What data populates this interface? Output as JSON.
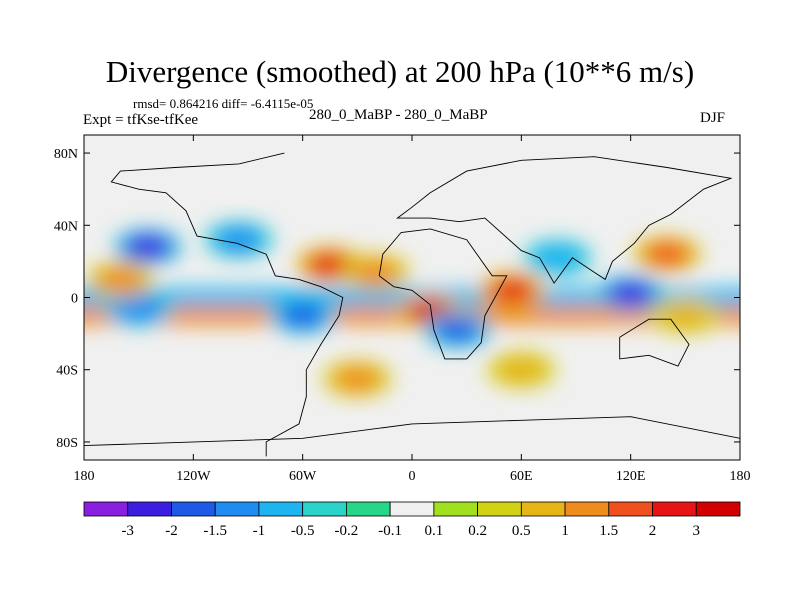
{
  "header": {
    "title": "Divergence (smoothed) at 200 hPa (10**6 m/s)",
    "stats": "rmsd= 0.864216 diff= -6.4115e-05",
    "expt": "Expt = tfKse-tfKee",
    "case": "280_0_MaBP - 280_0_MaBP",
    "season": "DJF"
  },
  "chart_data": {
    "type": "heatmap",
    "title": "Divergence (smoothed) at 200 hPa (10**6 m/s)",
    "xlabel": "",
    "ylabel": "",
    "xlim": [
      -180,
      180
    ],
    "ylim": [
      -90,
      90
    ],
    "x_ticks": [
      {
        "value": -180,
        "label": "180"
      },
      {
        "value": -120,
        "label": "120W"
      },
      {
        "value": -60,
        "label": "60W"
      },
      {
        "value": 0,
        "label": "0"
      },
      {
        "value": 60,
        "label": "60E"
      },
      {
        "value": 120,
        "label": "120E"
      },
      {
        "value": 180,
        "label": "180"
      }
    ],
    "y_ticks": [
      {
        "value": 80,
        "label": "80N"
      },
      {
        "value": 40,
        "label": "40N"
      },
      {
        "value": 0,
        "label": "0"
      },
      {
        "value": -40,
        "label": "40S"
      },
      {
        "value": -80,
        "label": "80S"
      }
    ],
    "colorbar": {
      "labels": [
        "-3",
        "-2",
        "-1.5",
        "-1",
        "-0.5",
        "-0.2",
        "-0.1",
        "0.1",
        "0.2",
        "0.5",
        "1",
        "1.5",
        "2",
        "3"
      ],
      "colors": [
        "#8a1fe0",
        "#3c1ee0",
        "#1e5ae6",
        "#1e8cf0",
        "#1eb4f0",
        "#2ad2c8",
        "#28d68a",
        "#f0f0f0",
        "#a0e01e",
        "#d2d214",
        "#e6b414",
        "#f08c1e",
        "#f0501e",
        "#e61414",
        "#d20000"
      ]
    },
    "fields": [
      {
        "lon": -145,
        "lat": 28,
        "value": -2.2
      },
      {
        "lon": -95,
        "lat": 32,
        "value": -1.2
      },
      {
        "lon": -45,
        "lat": 18,
        "value": 2.2
      },
      {
        "lon": -20,
        "lat": 14,
        "value": 1.2
      },
      {
        "lon": 10,
        "lat": -8,
        "value": 3.0
      },
      {
        "lon": 25,
        "lat": -18,
        "value": -1.8
      },
      {
        "lon": 55,
        "lat": 4,
        "value": 2.6
      },
      {
        "lon": 80,
        "lat": 22,
        "value": -1.0
      },
      {
        "lon": 120,
        "lat": 2,
        "value": -2.2
      },
      {
        "lon": 140,
        "lat": 24,
        "value": 1.8
      },
      {
        "lon": -150,
        "lat": -6,
        "value": -1.4
      },
      {
        "lon": -60,
        "lat": -10,
        "value": -1.6
      },
      {
        "lon": -160,
        "lat": 10,
        "value": 1.0
      },
      {
        "lon": -30,
        "lat": -45,
        "value": 1.0
      },
      {
        "lon": 60,
        "lat": -40,
        "value": 0.6
      },
      {
        "lon": 150,
        "lat": -10,
        "value": 0.7
      }
    ],
    "bands": [
      {
        "lat": 0,
        "value": -0.9
      },
      {
        "lat": -10,
        "value": 1.1
      }
    ]
  }
}
